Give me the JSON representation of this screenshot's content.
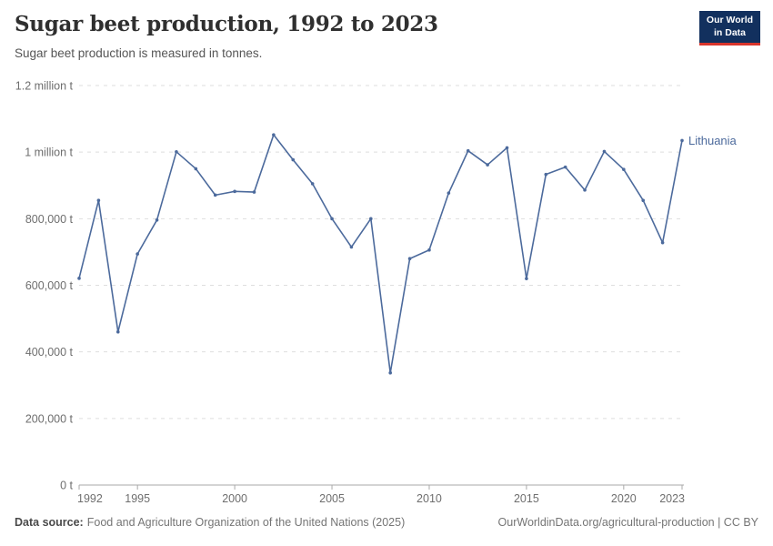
{
  "header": {
    "title": "Sugar beet production, 1992 to 2023",
    "subtitle": "Sugar beet production is measured in tonnes.",
    "logo": {
      "line1": "Our World",
      "line2": "in Data",
      "bg": "#12305e",
      "accent": "#d8352c"
    }
  },
  "chart_data": {
    "type": "line",
    "title": "Sugar beet production, 1992 to 2023",
    "unit": "tonnes",
    "xlim": [
      1992,
      2023
    ],
    "ylim": [
      0,
      1200000
    ],
    "grid": "horizontal-dashed",
    "legend_position": "end-of-line-label",
    "x_ticks": [
      1992,
      1995,
      2000,
      2005,
      2010,
      2015,
      2020,
      2023
    ],
    "y_ticks": [
      {
        "value": 0,
        "label": "0 t"
      },
      {
        "value": 200000,
        "label": "200,000 t"
      },
      {
        "value": 400000,
        "label": "400,000 t"
      },
      {
        "value": 600000,
        "label": "600,000 t"
      },
      {
        "value": 800000,
        "label": "800,000 t"
      },
      {
        "value": 1000000,
        "label": "1 million t"
      },
      {
        "value": 1200000,
        "label": "1.2 million t"
      }
    ],
    "series": [
      {
        "name": "Lithuania",
        "color": "#4c6a9c",
        "x": [
          1992,
          1993,
          1994,
          1995,
          1996,
          1997,
          1998,
          1999,
          2000,
          2001,
          2002,
          2003,
          2004,
          2005,
          2006,
          2007,
          2008,
          2009,
          2010,
          2011,
          2012,
          2013,
          2014,
          2015,
          2016,
          2017,
          2018,
          2019,
          2020,
          2021,
          2022,
          2023
        ],
        "values": [
          621000,
          855000,
          460000,
          694000,
          796000,
          1001000,
          950000,
          871000,
          882000,
          880000,
          1052000,
          977000,
          905000,
          800000,
          715000,
          800000,
          337000,
          680000,
          706000,
          877000,
          1004000,
          962000,
          1013000,
          620000,
          933000,
          955000,
          886000,
          1002000,
          948000,
          855000,
          728000,
          1035000
        ]
      }
    ]
  },
  "footer": {
    "source_label": "Data source:",
    "source_text": "Food and Agriculture Organization of the United Nations (2025)",
    "url_text": "OurWorldinData.org/agricultural-production | CC BY"
  },
  "colors": {
    "line": "#4c6a9c",
    "gridline": "#dedede",
    "axis": "#a9a9a9",
    "tick_label": "#6e6e6e",
    "title": "#2f2f2f",
    "subtitle": "#555555",
    "footer_text": "#757575"
  }
}
